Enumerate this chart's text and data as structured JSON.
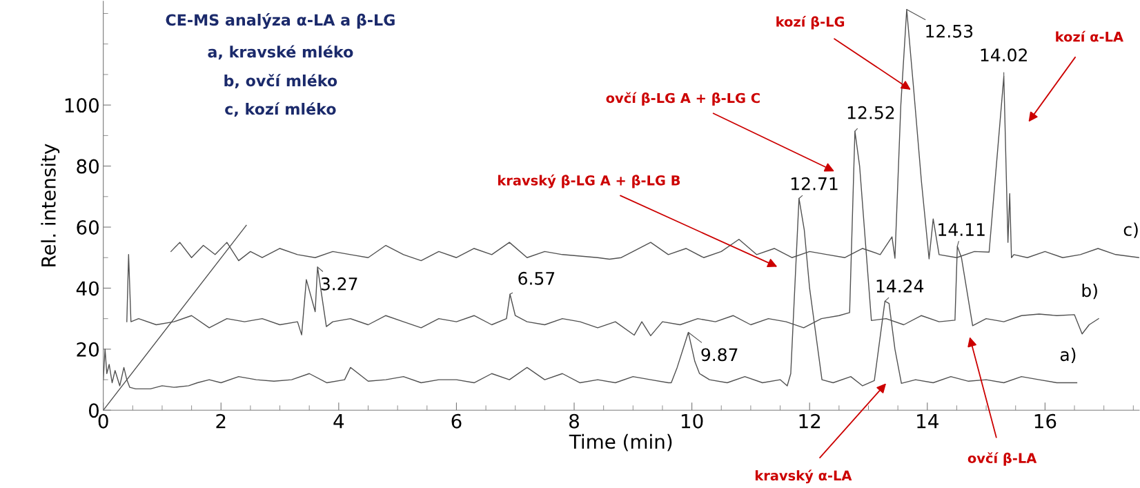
{
  "chart_data": {
    "type": "line",
    "title": "CE-MS analýza α-LA a β-LG",
    "xlabel": "Time (min)",
    "ylabel": "Rel. intensity",
    "xlim": [
      0,
      17.6
    ],
    "ylim": [
      0,
      134
    ],
    "xticks": [
      0,
      2,
      4,
      6,
      8,
      10,
      12,
      14,
      16
    ],
    "yticks": [
      0,
      20,
      40,
      60,
      80,
      100
    ],
    "series": [
      {
        "name": "a)",
        "color": "#505050",
        "x": [
          0,
          0.03,
          0.06,
          0.1,
          0.15,
          0.2,
          0.28,
          0.35,
          0.4,
          0.45,
          0.55,
          0.8,
          1.0,
          1.2,
          1.45,
          1.6,
          1.8,
          2.0,
          2.3,
          2.6,
          2.9,
          3.2,
          3.5,
          3.8,
          4.1,
          4.2,
          4.5,
          4.8,
          5.1,
          5.4,
          5.7,
          6.0,
          6.3,
          6.6,
          6.9,
          7.2,
          7.5,
          7.8,
          8.1,
          8.4,
          8.7,
          9.0,
          9.3,
          9.6,
          9.65,
          9.75,
          9.94,
          10.05,
          10.13,
          10.3,
          10.6,
          10.9,
          11.2,
          11.5,
          11.62,
          11.68,
          11.82,
          11.91,
          12.0,
          12.21,
          12.4,
          12.7,
          12.9,
          13.1,
          13.28,
          13.35,
          13.45,
          13.56,
          13.8,
          14.1,
          14.4,
          14.7,
          15.0,
          15.3,
          15.6,
          15.9,
          16.2,
          16.54
        ],
        "values": [
          10,
          20,
          12,
          15,
          9,
          13,
          8,
          14,
          10,
          7.5,
          7,
          7,
          8,
          7.5,
          8,
          9,
          10,
          9,
          11,
          10,
          9.5,
          10,
          12,
          9,
          10,
          14,
          9.5,
          10,
          11,
          9,
          10,
          10,
          9,
          12,
          10,
          14,
          10,
          12,
          9,
          10,
          9,
          11,
          10,
          9,
          9,
          14,
          25.5,
          16,
          12,
          10,
          9,
          11,
          9,
          10,
          8,
          12,
          69.4,
          59,
          40,
          10,
          9,
          11,
          8,
          9.7,
          35.7,
          35,
          20,
          8.8,
          10,
          9,
          11,
          9.5,
          10,
          9,
          11,
          10,
          9,
          9
        ]
      },
      {
        "name": "b)",
        "color": "#505050",
        "x": [
          0.4,
          0.43,
          0.47,
          0.6,
          0.9,
          1.2,
          1.5,
          1.8,
          2.1,
          2.4,
          2.7,
          3.0,
          3.3,
          3.37,
          3.45,
          3.6,
          3.64,
          3.79,
          3.9,
          4.2,
          4.5,
          4.8,
          5.1,
          5.4,
          5.7,
          6.0,
          6.3,
          6.6,
          6.85,
          6.91,
          7.0,
          7.2,
          7.5,
          7.8,
          8.1,
          8.4,
          8.7,
          9.02,
          9.15,
          9.3,
          9.5,
          9.8,
          10.1,
          10.4,
          10.7,
          11.0,
          11.3,
          11.6,
          11.9,
          12.2,
          12.5,
          12.68,
          12.77,
          12.85,
          13.05,
          13.3,
          13.6,
          13.9,
          14.2,
          14.47,
          14.51,
          14.58,
          14.77,
          15.0,
          15.3,
          15.6,
          15.9,
          16.2,
          16.5,
          16.63,
          16.75,
          16.91
        ],
        "values": [
          29,
          51,
          29,
          30,
          28,
          29,
          31,
          27,
          30,
          29,
          30,
          28,
          29,
          24.7,
          42.8,
          32.3,
          46.9,
          27.4,
          29,
          30,
          28,
          31,
          29,
          27,
          30,
          29,
          31,
          28,
          30,
          38,
          31,
          29,
          28,
          30,
          29,
          27,
          29,
          24.6,
          29,
          24.4,
          29,
          28,
          30,
          29,
          31,
          28,
          30,
          29,
          27,
          30,
          31,
          32,
          91.4,
          80,
          29.4,
          30,
          28,
          31,
          29,
          29.5,
          53.7,
          50,
          27.7,
          30,
          29,
          31,
          31.5,
          31,
          31.3,
          25,
          28,
          30
        ]
      },
      {
        "name": "c)",
        "color": "#505050",
        "x": [
          1.15,
          1.3,
          1.5,
          1.7,
          1.9,
          2.1,
          2.3,
          2.5,
          2.7,
          3.0,
          3.3,
          3.6,
          3.9,
          4.2,
          4.5,
          4.8,
          5.1,
          5.4,
          5.7,
          6.0,
          6.3,
          6.6,
          6.9,
          7.2,
          7.5,
          7.8,
          8.1,
          8.4,
          8.6,
          8.8,
          9.0,
          9.3,
          9.6,
          9.9,
          10.2,
          10.5,
          10.8,
          11.1,
          11.4,
          11.7,
          12.0,
          12.3,
          12.6,
          12.9,
          13.2,
          13.4,
          13.45,
          13.55,
          13.65,
          13.77,
          13.9,
          14.03,
          14.1,
          14.2,
          14.5,
          14.8,
          15.05,
          15.3,
          15.37,
          15.4,
          15.43,
          15.47,
          15.7,
          16.0,
          16.3,
          16.6,
          16.9,
          17.2,
          17.6
        ],
        "values": [
          52,
          55,
          50,
          54,
          51,
          55,
          49,
          52,
          50,
          53,
          51,
          50,
          52,
          51,
          50,
          54,
          51,
          49,
          52,
          50,
          53,
          51,
          55,
          50,
          52,
          51,
          50.5,
          50,
          49.5,
          50,
          52,
          55,
          51,
          53,
          50,
          52,
          56,
          51,
          53,
          50,
          52,
          51,
          50,
          53,
          51,
          56.8,
          49.8,
          100,
          131.3,
          104.8,
          75,
          49.6,
          62.7,
          51,
          50,
          52,
          51.8,
          109.4,
          55,
          71,
          50,
          51,
          50,
          52,
          50,
          51,
          53,
          51,
          50
        ]
      },
      {
        "type": "line",
        "color": "#505050",
        "x": [
          0,
          2.43
        ],
        "values": [
          0,
          60.6
        ]
      }
    ],
    "annotations": [
      "a, kravské mléko",
      "b, ovčí mléko",
      "c, kozí mléko",
      {
        "text": "3.27",
        "x": 3.64,
        "y": 46.9
      },
      {
        "text": "6.57",
        "x": 6.91,
        "y": 38
      },
      {
        "text": "9.87",
        "x": 9.94,
        "y": 25.5
      },
      {
        "text": "12.71",
        "x": 11.82,
        "y": 69.4
      },
      {
        "text": "12.52",
        "x": 12.77,
        "y": 91.4
      },
      {
        "text": "12.53",
        "x": 13.65,
        "y": 131.3
      },
      {
        "text": "14.24",
        "x": 13.28,
        "y": 35.7
      },
      {
        "text": "14.11",
        "x": 14.51,
        "y": 53.7
      },
      {
        "text": "14.02",
        "x": 15.3,
        "y": 109.4
      },
      "kozí β-LG",
      "kozí α-LA",
      "ovčí β-LG A + β-LG C",
      "kravský β-LG A + β-LG B",
      "kravský α-LA",
      "ovčí β-LA"
    ]
  }
}
